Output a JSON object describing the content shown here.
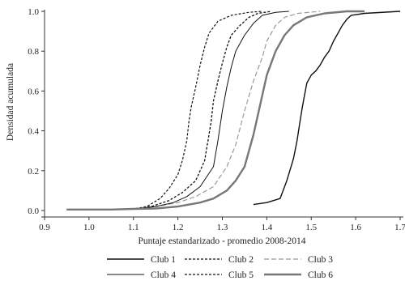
{
  "chart_data": {
    "type": "line",
    "title": "",
    "xlabel": "Puntaje estandarizado - promedio 2008-2014",
    "ylabel": "Densidad acumulada",
    "xlim": [
      0.9,
      1.7
    ],
    "ylim": [
      0.0,
      1.0
    ],
    "xticks": [
      "0.9",
      "1.0",
      "1.1",
      "1.2",
      "1.3",
      "1.4",
      "1.5",
      "1.6",
      "1.7"
    ],
    "yticks": [
      "0.0",
      "0.2",
      "0.4",
      "0.6",
      "0.8",
      "1.0"
    ],
    "grid": false,
    "legend_placement": "bottom",
    "series": [
      {
        "name": "Club 1",
        "color": "#111111",
        "style": "solid",
        "width": 1.4,
        "points": [
          [
            1.37,
            0.03
          ],
          [
            1.4,
            0.04
          ],
          [
            1.43,
            0.06
          ],
          [
            1.445,
            0.15
          ],
          [
            1.46,
            0.26
          ],
          [
            1.468,
            0.35
          ],
          [
            1.475,
            0.45
          ],
          [
            1.48,
            0.52
          ],
          [
            1.485,
            0.58
          ],
          [
            1.49,
            0.64
          ],
          [
            1.5,
            0.68
          ],
          [
            1.51,
            0.7
          ],
          [
            1.52,
            0.73
          ],
          [
            1.53,
            0.77
          ],
          [
            1.54,
            0.8
          ],
          [
            1.55,
            0.85
          ],
          [
            1.56,
            0.89
          ],
          [
            1.57,
            0.93
          ],
          [
            1.58,
            0.96
          ],
          [
            1.59,
            0.98
          ],
          [
            1.62,
            0.99
          ],
          [
            1.7,
            1.0
          ]
        ]
      },
      {
        "name": "Club 2",
        "color": "#111111",
        "style": "dashed-short",
        "width": 1.2,
        "points": [
          [
            0.95,
            0.005
          ],
          [
            1.05,
            0.005
          ],
          [
            1.1,
            0.008
          ],
          [
            1.13,
            0.02
          ],
          [
            1.16,
            0.06
          ],
          [
            1.18,
            0.11
          ],
          [
            1.2,
            0.18
          ],
          [
            1.21,
            0.25
          ],
          [
            1.22,
            0.35
          ],
          [
            1.225,
            0.45
          ],
          [
            1.23,
            0.52
          ],
          [
            1.24,
            0.62
          ],
          [
            1.25,
            0.73
          ],
          [
            1.26,
            0.82
          ],
          [
            1.27,
            0.89
          ],
          [
            1.29,
            0.95
          ],
          [
            1.32,
            0.98
          ],
          [
            1.36,
            0.995
          ],
          [
            1.39,
            1.0
          ]
        ]
      },
      {
        "name": "Club 3",
        "color": "#999999",
        "style": "dashed-long",
        "width": 1.2,
        "points": [
          [
            0.95,
            0.005
          ],
          [
            1.05,
            0.005
          ],
          [
            1.1,
            0.008
          ],
          [
            1.15,
            0.02
          ],
          [
            1.2,
            0.04
          ],
          [
            1.24,
            0.07
          ],
          [
            1.28,
            0.12
          ],
          [
            1.31,
            0.22
          ],
          [
            1.33,
            0.33
          ],
          [
            1.35,
            0.5
          ],
          [
            1.37,
            0.65
          ],
          [
            1.39,
            0.77
          ],
          [
            1.4,
            0.85
          ],
          [
            1.42,
            0.93
          ],
          [
            1.44,
            0.97
          ],
          [
            1.47,
            0.99
          ],
          [
            1.52,
            1.0
          ]
        ]
      },
      {
        "name": "Club 4",
        "color": "#111111",
        "style": "solid",
        "width": 1.0,
        "points": [
          [
            0.95,
            0.005
          ],
          [
            1.05,
            0.005
          ],
          [
            1.1,
            0.008
          ],
          [
            1.15,
            0.02
          ],
          [
            1.19,
            0.04
          ],
          [
            1.22,
            0.07
          ],
          [
            1.25,
            0.12
          ],
          [
            1.28,
            0.22
          ],
          [
            1.29,
            0.35
          ],
          [
            1.3,
            0.5
          ],
          [
            1.31,
            0.62
          ],
          [
            1.32,
            0.72
          ],
          [
            1.33,
            0.8
          ],
          [
            1.35,
            0.88
          ],
          [
            1.37,
            0.94
          ],
          [
            1.39,
            0.98
          ],
          [
            1.42,
            0.995
          ],
          [
            1.45,
            1.0
          ]
        ]
      },
      {
        "name": "Club 5",
        "color": "#111111",
        "style": "dashed-short",
        "width": 1.3,
        "points": [
          [
            0.95,
            0.005
          ],
          [
            1.05,
            0.005
          ],
          [
            1.1,
            0.008
          ],
          [
            1.14,
            0.02
          ],
          [
            1.18,
            0.05
          ],
          [
            1.21,
            0.09
          ],
          [
            1.24,
            0.15
          ],
          [
            1.26,
            0.25
          ],
          [
            1.27,
            0.38
          ],
          [
            1.275,
            0.45
          ],
          [
            1.28,
            0.55
          ],
          [
            1.29,
            0.65
          ],
          [
            1.3,
            0.74
          ],
          [
            1.31,
            0.82
          ],
          [
            1.32,
            0.88
          ],
          [
            1.34,
            0.93
          ],
          [
            1.36,
            0.97
          ],
          [
            1.38,
            0.99
          ],
          [
            1.41,
            1.0
          ]
        ]
      },
      {
        "name": "Club 6",
        "color": "#777777",
        "style": "solid",
        "width": 2.4,
        "points": [
          [
            0.95,
            0.005
          ],
          [
            1.05,
            0.005
          ],
          [
            1.1,
            0.008
          ],
          [
            1.15,
            0.01
          ],
          [
            1.2,
            0.02
          ],
          [
            1.25,
            0.04
          ],
          [
            1.28,
            0.06
          ],
          [
            1.31,
            0.1
          ],
          [
            1.33,
            0.15
          ],
          [
            1.35,
            0.22
          ],
          [
            1.36,
            0.3
          ],
          [
            1.37,
            0.38
          ],
          [
            1.38,
            0.48
          ],
          [
            1.39,
            0.58
          ],
          [
            1.4,
            0.68
          ],
          [
            1.42,
            0.8
          ],
          [
            1.44,
            0.88
          ],
          [
            1.46,
            0.93
          ],
          [
            1.49,
            0.97
          ],
          [
            1.53,
            0.99
          ],
          [
            1.58,
            1.0
          ],
          [
            1.62,
            1.0
          ]
        ]
      }
    ]
  }
}
